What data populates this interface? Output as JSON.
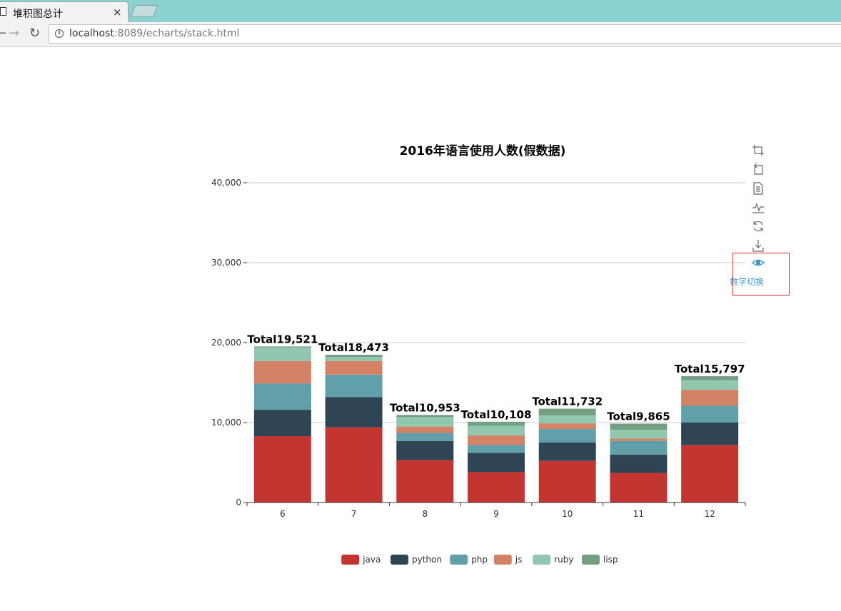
{
  "browser": {
    "tab_title": "堆积图总计",
    "tab_close": "×",
    "url_host": "localhost",
    "url_rest": ":8089/echarts/stack.html"
  },
  "toolbox": {
    "items": [
      "data-zoom-icon",
      "restore-zoom-icon",
      "data-view-icon",
      "line-switch-icon",
      "restore-icon",
      "save-image-icon",
      "eye-icon"
    ],
    "active_label": "数字切换",
    "active_color": "#3e98c5"
  },
  "chart_data": {
    "type": "bar",
    "stacked": true,
    "title": "2016年语言使用人数(假数据)",
    "categories": [
      "6",
      "7",
      "8",
      "9",
      "10",
      "11",
      "12"
    ],
    "ylim": [
      0,
      40000
    ],
    "yticks": [
      0,
      10000,
      20000,
      30000,
      40000
    ],
    "ytick_labels": [
      "0",
      "10,000",
      "20,000",
      "30,000",
      "40,000"
    ],
    "grid": true,
    "legend_position": "bottom-center",
    "series": [
      {
        "name": "java",
        "color": "#c23531",
        "values": [
          8300,
          9400,
          5300,
          3800,
          5200,
          3700,
          7200
        ]
      },
      {
        "name": "python",
        "color": "#2f4554",
        "values": [
          3300,
          3800,
          2400,
          2400,
          2300,
          2300,
          2800
        ]
      },
      {
        "name": "php",
        "color": "#61a0a8",
        "values": [
          3300,
          2800,
          1000,
          1000,
          1700,
          1700,
          2100
        ]
      },
      {
        "name": "js",
        "color": "#d48265",
        "values": [
          2800,
          1700,
          800,
          1200,
          700,
          300,
          2000
        ]
      },
      {
        "name": "ruby",
        "color": "#91c7ae",
        "values": [
          1700,
          500,
          1200,
          1200,
          1000,
          1100,
          1200
        ]
      },
      {
        "name": "lisp",
        "color": "#749f83",
        "values": [
          121,
          273,
          253,
          508,
          832,
          765,
          497
        ]
      }
    ],
    "totals": [
      19521,
      18473,
      10953,
      10108,
      11732,
      9865,
      15797
    ],
    "total_labels": [
      "Total19,521",
      "Total18,473",
      "Total10,953",
      "Total10,108",
      "Total11,732",
      "Total9,865",
      "Total15,797"
    ]
  }
}
